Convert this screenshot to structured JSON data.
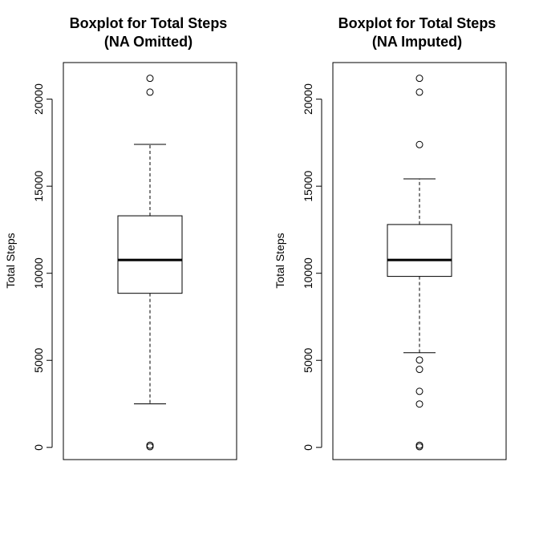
{
  "chart_data": [
    {
      "type": "boxplot",
      "title_line1": "Boxplot for Total Steps",
      "title_line2": "(NA Omitted)",
      "ylabel": "Total Steps",
      "yticks": [
        0,
        5000,
        10000,
        15000,
        20000
      ],
      "ylim": [
        -700,
        22100
      ],
      "box": {
        "whisker_low": 2500,
        "q1": 8850,
        "median": 10765,
        "q3": 13300,
        "whisker_high": 17400
      },
      "outliers": [
        41,
        126,
        20400,
        21194
      ]
    },
    {
      "type": "boxplot",
      "title_line1": "Boxplot for Total Steps",
      "title_line2": "(NA Imputed)",
      "ylabel": "Total Steps",
      "yticks": [
        0,
        5000,
        10000,
        15000,
        20000
      ],
      "ylim": [
        -700,
        22100
      ],
      "box": {
        "whisker_low": 5440,
        "q1": 9820,
        "median": 10766,
        "q3": 12800,
        "whisker_high": 15420
      },
      "outliers": [
        41,
        126,
        2490,
        3220,
        4480,
        5020,
        17390,
        20400,
        21194
      ]
    }
  ]
}
